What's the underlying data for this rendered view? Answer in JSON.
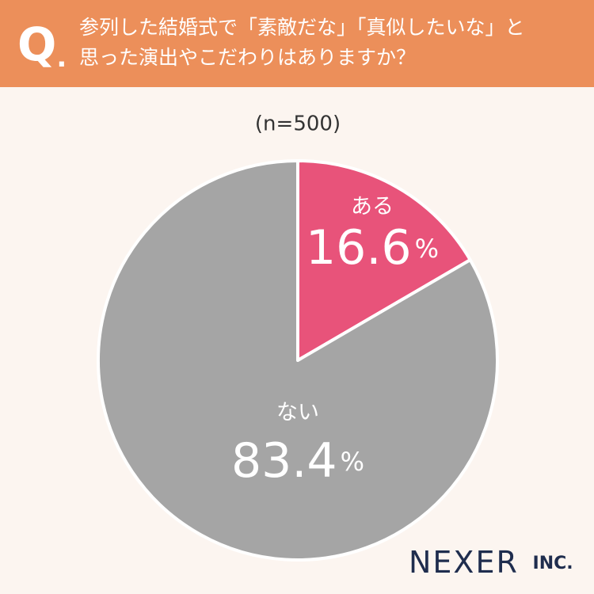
{
  "chart_data": {
    "type": "pie",
    "question_mark": "Q.",
    "title": [
      "参列した結婚式で「素敵だな」「真似したいな」と",
      "思った演出やこだわりはありますか？"
    ],
    "subtitle": "(n=500)",
    "categories": [
      "ある",
      "ない"
    ],
    "values": [
      16.6,
      83.4
    ],
    "value_labels": [
      "16.6%",
      "83.4%"
    ],
    "colors": [
      "#e8537a",
      "#a5a5a5"
    ],
    "logo": "NEXER INC."
  }
}
